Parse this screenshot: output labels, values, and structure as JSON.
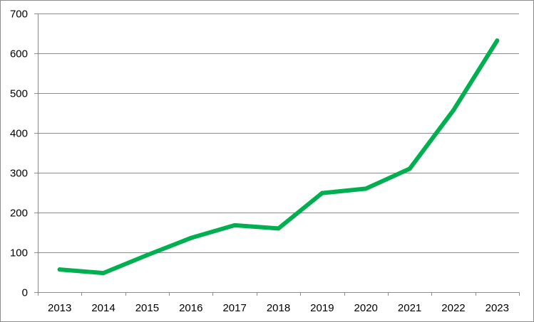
{
  "chart_data": {
    "type": "line",
    "title": "",
    "xlabel": "",
    "ylabel": "",
    "categories": [
      "2013",
      "2014",
      "2015",
      "2016",
      "2017",
      "2018",
      "2019",
      "2020",
      "2021",
      "2022",
      "2023"
    ],
    "series": [
      {
        "values": [
          57,
          48,
          93,
          136,
          168,
          160,
          249,
          260,
          310,
          457,
          632
        ],
        "color": "#00b050"
      }
    ],
    "ylim": [
      0,
      700
    ],
    "yticks": [
      0,
      100,
      200,
      300,
      400,
      500,
      600,
      700
    ],
    "ytick_labels": [
      "0",
      "100",
      "200",
      "300",
      "400",
      "500",
      "600",
      "700"
    ],
    "grid": "horizontal",
    "legend": "none",
    "colors": {
      "gridline": "#8c8c8c",
      "axis": "#8c8c8c",
      "border": "#8c8c8c"
    }
  }
}
